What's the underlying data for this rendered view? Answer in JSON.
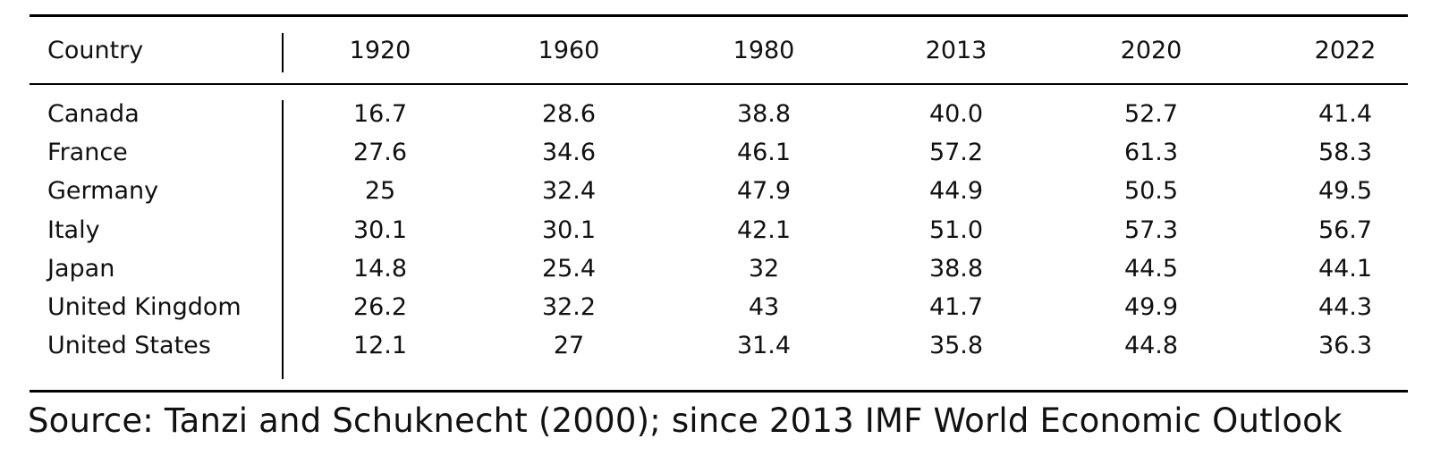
{
  "table": {
    "headers": {
      "country": "Country",
      "years": [
        "1920",
        "1960",
        "1980",
        "2013",
        "2020",
        "2022"
      ]
    },
    "rows": [
      {
        "country": "Canada",
        "values": [
          "16.7",
          "28.6",
          "38.8",
          "40.0",
          "52.7",
          "41.4"
        ]
      },
      {
        "country": "France",
        "values": [
          "27.6",
          "34.6",
          "46.1",
          "57.2",
          "61.3",
          "58.3"
        ]
      },
      {
        "country": "Germany",
        "values": [
          "25",
          "32.4",
          "47.9",
          "44.9",
          "50.5",
          "49.5"
        ]
      },
      {
        "country": "Italy",
        "values": [
          "30.1",
          "30.1",
          "42.1",
          "51.0",
          "57.3",
          "56.7"
        ]
      },
      {
        "country": "Japan",
        "values": [
          "14.8",
          "25.4",
          "32",
          "38.8",
          "44.5",
          "44.1"
        ]
      },
      {
        "country": "United Kingdom",
        "values": [
          "26.2",
          "32.2",
          "43",
          "41.7",
          "49.9",
          "44.3"
        ]
      },
      {
        "country": "United States",
        "values": [
          "12.1",
          "27",
          "31.4",
          "35.8",
          "44.8",
          "36.3"
        ]
      }
    ]
  },
  "source_note": "Source: Tanzi and Schuknecht (2000); since 2013 IMF World Economic Outlook"
}
